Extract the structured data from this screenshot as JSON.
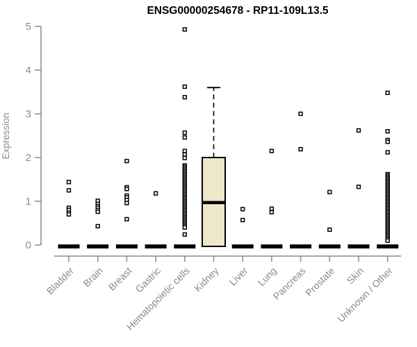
{
  "chart_data": {
    "type": "boxplot",
    "title": "ENSG00000254678 - RP11-109L13.5",
    "ylabel": "Expression",
    "xlabel": "",
    "ylim": [
      0,
      5
    ],
    "yticks": [
      0,
      1,
      2,
      3,
      4,
      5
    ],
    "grid": false,
    "legend": "none",
    "colors": {
      "box_fill": "#EDE8CC",
      "box_border": "#000000",
      "points": "#000000",
      "axis": "#898989",
      "tick_text": "#8A8A8A",
      "title_text": "#000000"
    },
    "categories": [
      "Bladder",
      "Brain",
      "Breast",
      "Gastric",
      "Hematopoietic cells",
      "Kidney",
      "Liver",
      "Lung",
      "Pancreas",
      "Prostate",
      "Skin",
      "Unknown / Other"
    ],
    "groups": [
      {
        "name": "Bladder",
        "box": {
          "q1": 0,
          "median": 0,
          "q3": 0,
          "whisker_low": 0,
          "whisker_high": 0
        },
        "outliers": [
          1.44,
          1.25,
          0.85,
          0.8,
          0.74,
          0.7
        ]
      },
      {
        "name": "Brain",
        "box": {
          "q1": 0,
          "median": 0,
          "q3": 0,
          "whisker_low": 0,
          "whisker_high": 0
        },
        "outliers": [
          1.01,
          0.94,
          0.89,
          0.85,
          0.8,
          0.76,
          0.43
        ]
      },
      {
        "name": "Breast",
        "box": {
          "q1": 0,
          "median": 0,
          "q3": 0,
          "whisker_low": 0,
          "whisker_high": 0
        },
        "outliers": [
          1.92,
          1.32,
          1.28,
          1.13,
          1.09,
          1.03,
          0.96,
          0.59
        ]
      },
      {
        "name": "Gastric",
        "box": {
          "q1": 0,
          "median": 0,
          "q3": 0,
          "whisker_low": 0,
          "whisker_high": 0
        },
        "outliers": [
          1.18
        ]
      },
      {
        "name": "Hematopoietic cells",
        "box": {
          "q1": 0,
          "median": 0,
          "q3": 0,
          "whisker_low": 0,
          "whisker_high": 0
        },
        "outliers": [
          4.93,
          3.62,
          3.38,
          2.57,
          2.46,
          2.15,
          2.07,
          1.99,
          0.24
        ],
        "outlier_band": {
          "min": 0.4,
          "max": 1.82,
          "count": 44
        }
      },
      {
        "name": "Kidney",
        "box": {
          "q1": 0,
          "median": 0.97,
          "q3": 2.0,
          "whisker_low": 0,
          "whisker_high": 3.6
        },
        "outliers": []
      },
      {
        "name": "Liver",
        "box": {
          "q1": 0,
          "median": 0,
          "q3": 0,
          "whisker_low": 0,
          "whisker_high": 0
        },
        "outliers": [
          0.82,
          0.57
        ]
      },
      {
        "name": "Lung",
        "box": {
          "q1": 0,
          "median": 0,
          "q3": 0,
          "whisker_low": 0,
          "whisker_high": 0
        },
        "outliers": [
          2.15,
          0.83,
          0.75
        ]
      },
      {
        "name": "Pancreas",
        "box": {
          "q1": 0,
          "median": 0,
          "q3": 0,
          "whisker_low": 0,
          "whisker_high": 0
        },
        "outliers": [
          3.0,
          2.19
        ]
      },
      {
        "name": "Prostate",
        "box": {
          "q1": 0,
          "median": 0,
          "q3": 0,
          "whisker_low": 0,
          "whisker_high": 0
        },
        "outliers": [
          1.21,
          0.35
        ]
      },
      {
        "name": "Skin",
        "box": {
          "q1": 0,
          "median": 0,
          "q3": 0,
          "whisker_low": 0,
          "whisker_high": 0
        },
        "outliers": [
          2.62,
          1.33
        ]
      },
      {
        "name": "Unknown / Other",
        "box": {
          "q1": 0,
          "median": 0,
          "q3": 0,
          "whisker_low": 0,
          "whisker_high": 0
        },
        "outliers": [
          3.48,
          2.6,
          2.4,
          2.36,
          2.12
        ],
        "outlier_band": {
          "min": 0.1,
          "max": 1.62,
          "count": 48
        }
      }
    ]
  }
}
